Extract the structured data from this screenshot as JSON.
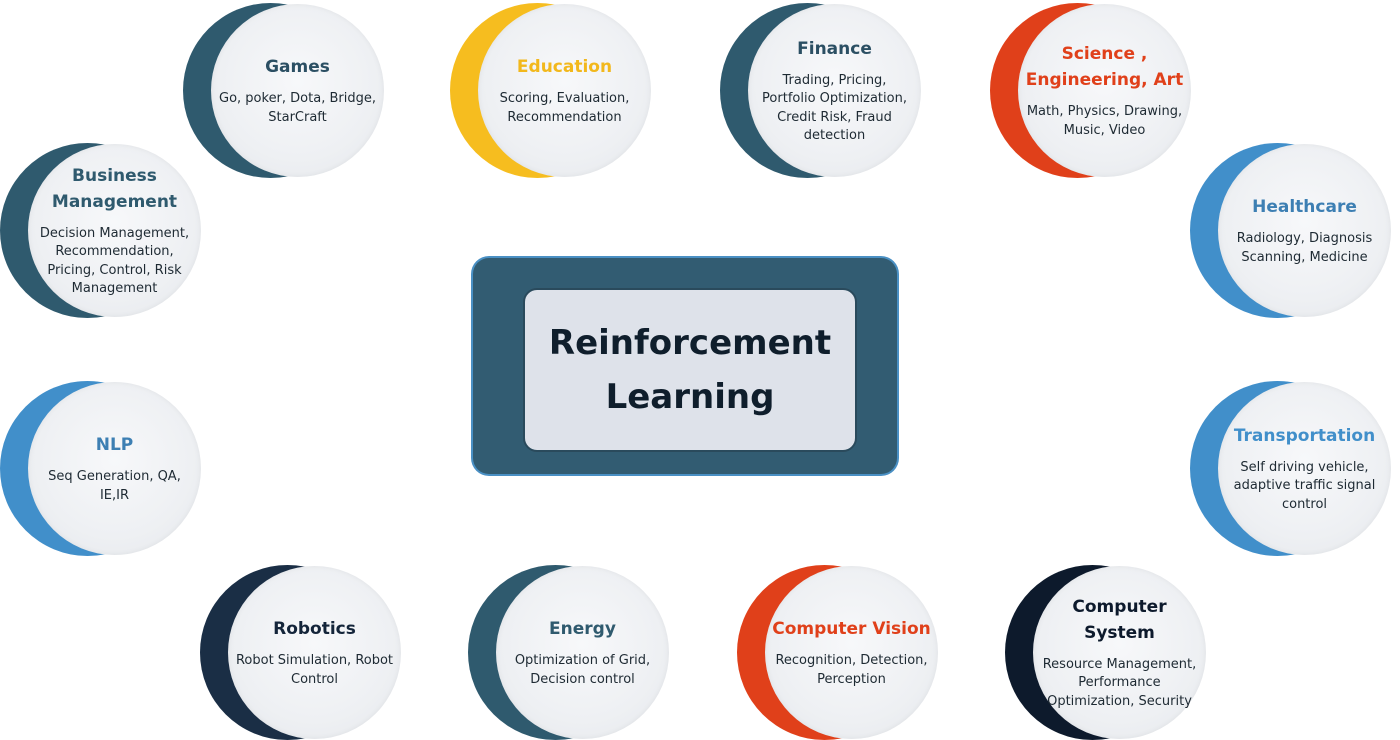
{
  "center": {
    "title": "Reinforcement Learning"
  },
  "colors": {
    "dark_teal": "#2f5a6e",
    "yellow": "#f6bd1f",
    "orange_red": "#e0401a",
    "mid_blue": "#418fca",
    "navy": "#0d1a2c",
    "center_outer": "#325c72",
    "center_inner": "#dee2ea"
  },
  "nodes": [
    {
      "title": "Games",
      "desc": "Go, poker, Dota, Bridge, StarCraft",
      "accent": "#2f5a6e",
      "title_color": "#2b4f63"
    },
    {
      "title": "Education",
      "desc": "Scoring, Evaluation, Recommendation",
      "accent": "#f6bd1f",
      "title_color": "#f2b81c"
    },
    {
      "title": "Finance",
      "desc": "Trading, Pricing, Portfolio Optimization, Credit Risk, Fraud detection",
      "accent": "#2f5a6e",
      "title_color": "#2b4f63"
    },
    {
      "title": "Science , Engineering, Art",
      "desc": "Math, Physics, Drawing, Music, Video",
      "accent": "#e0401a",
      "title_color": "#e0401a"
    },
    {
      "title": "Business Management",
      "desc": "Decision Management, Recommendation, Pricing, Control, Risk Management",
      "accent": "#2f5a6e",
      "title_color": "#2f5a6e"
    },
    {
      "title": "Healthcare",
      "desc": "Radiology, Diagnosis Scanning, Medicine",
      "accent": "#418fca",
      "title_color": "#3d7fb3"
    },
    {
      "title": "NLP",
      "desc": "Seq Generation, QA, IE,IR",
      "accent": "#418fca",
      "title_color": "#3d7fb3"
    },
    {
      "title": "Transportation",
      "desc": "Self driving vehicle, adaptive traffic signal control",
      "accent": "#418fca",
      "title_color": "#418fca"
    },
    {
      "title": "Robotics",
      "desc": "Robot Simulation, Robot Control",
      "accent": "#1a2e45",
      "title_color": "#14253a"
    },
    {
      "title": "Energy",
      "desc": "Optimization of Grid, Decision control",
      "accent": "#2f5a6e",
      "title_color": "#2f5a6e"
    },
    {
      "title": "Computer Vision",
      "desc": "Recognition, Detection, Perception",
      "accent": "#e0401a",
      "title_color": "#e0401a"
    },
    {
      "title": "Computer System",
      "desc": "Resource Management, Performance Optimization, Security",
      "accent": "#0d1a2c",
      "title_color": "#0d1a2c"
    }
  ]
}
